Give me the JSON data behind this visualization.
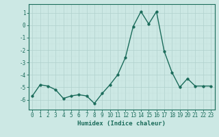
{
  "x": [
    0,
    1,
    2,
    3,
    4,
    5,
    6,
    7,
    8,
    9,
    10,
    11,
    12,
    13,
    14,
    15,
    16,
    17,
    18,
    19,
    20,
    21,
    22,
    23
  ],
  "y": [
    -5.7,
    -4.8,
    -4.9,
    -5.2,
    -5.9,
    -5.7,
    -5.6,
    -5.7,
    -6.3,
    -5.5,
    -4.8,
    -4.0,
    -2.6,
    -0.1,
    1.1,
    0.1,
    1.1,
    -2.1,
    -3.8,
    -5.0,
    -4.3,
    -4.9,
    -4.9,
    -4.9
  ],
  "line_color": "#1a6b5a",
  "marker_color": "#1a6b5a",
  "bg_color": "#cce8e4",
  "grid_color_major": "#b0d0cc",
  "grid_color_minor": "#c4e0dc",
  "xlabel": "Humidex (Indice chaleur)",
  "ylim": [
    -6.8,
    1.7
  ],
  "xlim": [
    -0.5,
    23.5
  ],
  "yticks": [
    -6,
    -5,
    -4,
    -3,
    -2,
    -1,
    0,
    1
  ],
  "xticks": [
    0,
    1,
    2,
    3,
    4,
    5,
    6,
    7,
    8,
    9,
    10,
    11,
    12,
    13,
    14,
    15,
    16,
    17,
    18,
    19,
    20,
    21,
    22,
    23
  ],
  "tick_fontsize": 5.5,
  "xlabel_fontsize": 6.5,
  "line_width": 1.0,
  "marker_size": 2.5
}
